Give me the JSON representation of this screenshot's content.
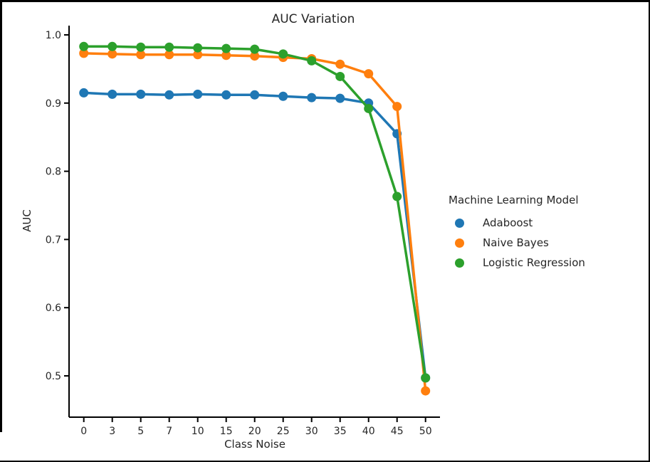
{
  "chart_data": {
    "type": "line",
    "title": "AUC Variation",
    "xlabel": "Class Noise",
    "ylabel": "AUC",
    "categories": [
      0,
      3,
      5,
      7,
      10,
      15,
      20,
      25,
      30,
      35,
      40,
      45,
      50
    ],
    "y_tick_labels": [
      "1.0",
      "0.9",
      "0.8",
      "0.7",
      "0.6",
      "0.5"
    ],
    "y_ticks": [
      1.0,
      0.9,
      0.8,
      0.7,
      0.6,
      0.5
    ],
    "ylim": [
      0.44,
      1.015
    ],
    "grid": false,
    "marker": "circle",
    "legend_title": "Machine Learning Model",
    "legend_position": "right-outside",
    "axis_color": "#000000",
    "text_color": "#262626",
    "series": [
      {
        "name": "Adaboost",
        "color": "#1f77b4",
        "values": [
          0.915,
          0.913,
          0.913,
          0.912,
          0.913,
          0.912,
          0.912,
          0.91,
          0.908,
          0.907,
          0.9,
          0.855,
          0.497
        ]
      },
      {
        "name": "Naive Bayes",
        "color": "#ff7f0e",
        "values": [
          0.973,
          0.972,
          0.971,
          0.971,
          0.971,
          0.97,
          0.969,
          0.967,
          0.965,
          0.957,
          0.943,
          0.895,
          0.478
        ]
      },
      {
        "name": "Logistic Regression",
        "color": "#2ca02c",
        "values": [
          0.983,
          0.983,
          0.982,
          0.982,
          0.981,
          0.98,
          0.979,
          0.972,
          0.962,
          0.939,
          0.892,
          0.763,
          0.497
        ]
      }
    ]
  }
}
